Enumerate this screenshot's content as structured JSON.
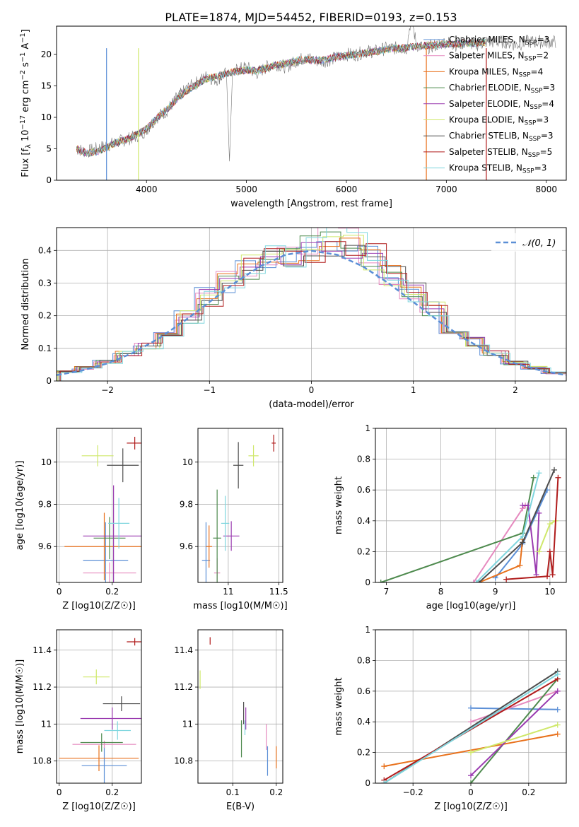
{
  "figure": {
    "title": "PLATE=1874, MJD=54452, FIBERID=0193, z=0.153"
  },
  "series_colors": {
    "Chabrier MILES": "#5b8fd6",
    "Salpeter MILES": "#e68abf",
    "Kroupa MILES": "#e8711c",
    "Chabrier ELODIE": "#4e8a4e",
    "Salpeter ELODIE": "#9a3bb0",
    "Kroupa ELODIE": "#cfe86a",
    "Chabrier STELIB": "#4d4d4d",
    "Salpeter STELIB": "#b01c1c",
    "Kroupa STELIB": "#7fd6de"
  },
  "chart_data": [
    {
      "id": "spectrum",
      "type": "line",
      "title": "PLATE=1874, MJD=54452, FIBERID=0193, z=0.153",
      "xlabel": "wavelength [Angstrom, rest frame]",
      "ylabel": "Flux [f_λ 10^-17 erg cm^-2 s^-1 A^-1]",
      "xlim": [
        3100,
        8200
      ],
      "ylim": [
        0,
        24.5
      ],
      "xticks": [
        4000,
        5000,
        6000,
        7000,
        8000
      ],
      "yticks": [
        0,
        5,
        10,
        15,
        20
      ],
      "grid": false,
      "legend_position": "top-right",
      "legend": [
        "Chabrier MILES, N_SSP=3",
        "Salpeter MILES, N_SSP=2",
        "Kroupa MILES, N_SSP=4",
        "Chabrier ELODIE, N_SSP=3",
        "Salpeter ELODIE, N_SSP=4",
        "Kroupa ELODIE, N_SSP=3",
        "Chabrier STELIB, N_SSP=3",
        "Salpeter STELIB, N_SSP=5",
        "Kroupa STELIB, N_SSP=3"
      ],
      "data_series": {
        "name": "data",
        "x": [
          3300,
          3400,
          3500,
          3600,
          3700,
          3800,
          3900,
          4000,
          4100,
          4200,
          4300,
          4400,
          4500,
          4600,
          4700,
          4800,
          4830,
          4860,
          4900,
          5000,
          5100,
          5200,
          5300,
          5400,
          5500,
          5600,
          5700,
          5800,
          5900,
          6000,
          6100,
          6200,
          6300,
          6400,
          6500,
          6600,
          6650,
          6700,
          6800,
          6900,
          7000,
          7100,
          7200,
          7300,
          7400,
          7500,
          7600,
          7700,
          7800,
          7900,
          8000,
          8100
        ],
        "y": [
          5,
          4.5,
          5,
          5.5,
          6,
          6.5,
          7,
          8,
          10,
          11,
          13,
          14.5,
          15.5,
          16.5,
          16,
          17,
          3,
          17,
          17.5,
          18,
          17,
          18,
          18.5,
          18,
          19,
          19.5,
          19,
          19,
          19.5,
          20,
          20,
          20.5,
          20.5,
          21,
          21,
          21,
          26,
          21.5,
          21,
          21.5,
          22,
          21.5,
          22,
          21.5,
          22,
          22,
          22,
          21.5,
          22,
          22,
          22,
          22
        ]
      },
      "model_series": {
        "x": [
          3300,
          3400,
          3500,
          3600,
          3700,
          3800,
          3900,
          4000,
          4100,
          4200,
          4300,
          4400,
          4500,
          4600,
          4700,
          4800,
          4900,
          5000,
          5100,
          5200,
          5300,
          5400,
          5500,
          5600,
          5700,
          5800,
          5900,
          6000,
          6100,
          6200,
          6300,
          6400,
          6500,
          6600,
          6700,
          6800,
          6900,
          7000,
          7100,
          7200,
          7300,
          7400
        ],
        "y": [
          5,
          4.3,
          4.5,
          5.2,
          6,
          6.5,
          7.2,
          8.2,
          9.8,
          11.2,
          12.8,
          14.2,
          15.2,
          16.2,
          16.5,
          17,
          17.3,
          17.5,
          17.4,
          17.8,
          18.4,
          18.5,
          19,
          19.2,
          19,
          19.2,
          19.6,
          19.8,
          20,
          20.3,
          20.5,
          20.8,
          21,
          21,
          21.3,
          21.4,
          21.5,
          21.6,
          21.7,
          21.8,
          21.8,
          21.9
        ]
      }
    },
    {
      "id": "residuals",
      "type": "step",
      "xlabel": "(data-model)/error",
      "ylabel": "Normed distribution",
      "xlim": [
        -2.5,
        2.5
      ],
      "ylim": [
        0,
        0.47
      ],
      "xticks": [
        -2,
        -1,
        0,
        1,
        2
      ],
      "yticks": [
        0.0,
        0.1,
        0.2,
        0.3,
        0.4
      ],
      "grid": true,
      "legend_position": "top-right",
      "legend": [
        "𝒩(0, 1)"
      ],
      "reference_curve": {
        "name": "𝒩(0, 1)",
        "x": [
          -2.5,
          -2.25,
          -2.0,
          -1.75,
          -1.5,
          -1.25,
          -1.0,
          -0.75,
          -0.5,
          -0.25,
          0.0,
          0.25,
          0.5,
          0.75,
          1.0,
          1.25,
          1.5,
          1.75,
          2.0,
          2.25,
          2.5
        ],
        "y": [
          0.018,
          0.032,
          0.054,
          0.086,
          0.13,
          0.183,
          0.242,
          0.301,
          0.352,
          0.387,
          0.399,
          0.387,
          0.352,
          0.301,
          0.242,
          0.183,
          0.13,
          0.086,
          0.054,
          0.032,
          0.018
        ]
      },
      "bin_edges": [
        -2.5,
        -2.3,
        -2.1,
        -1.9,
        -1.7,
        -1.5,
        -1.3,
        -1.1,
        -0.9,
        -0.7,
        -0.5,
        -0.3,
        -0.1,
        0.1,
        0.3,
        0.5,
        0.7,
        0.9,
        1.1,
        1.3,
        1.5,
        1.7,
        1.9,
        2.1,
        2.3,
        2.5
      ],
      "bin_heights": [
        0.028,
        0.04,
        0.058,
        0.085,
        0.11,
        0.15,
        0.2,
        0.26,
        0.3,
        0.35,
        0.38,
        0.39,
        0.4,
        0.43,
        0.42,
        0.38,
        0.33,
        0.27,
        0.22,
        0.16,
        0.12,
        0.085,
        0.055,
        0.04,
        0.025
      ]
    },
    {
      "id": "age-vs-Z",
      "type": "errorbar",
      "xlabel": "Z [log10(Z/Z☉)]",
      "ylabel": "age  [log10(age/yr)]",
      "xlim": [
        -0.01,
        0.31
      ],
      "ylim": [
        9.43,
        10.16
      ],
      "xticks": [
        0.0,
        0.2
      ],
      "yticks": [
        9.6,
        9.8,
        10.0
      ],
      "grid": true,
      "points": [
        {
          "series": "Chabrier MILES",
          "x": 0.175,
          "y": 9.535,
          "xerr": 0.085,
          "yerr": 0.18
        },
        {
          "series": "Salpeter MILES",
          "x": 0.19,
          "y": 9.475,
          "xerr": 0.1,
          "yerr": 0.05
        },
        {
          "series": "Kroupa MILES",
          "x": 0.17,
          "y": 9.6,
          "xerr": 0.15,
          "yerr": 0.16
        },
        {
          "series": "Chabrier ELODIE",
          "x": 0.19,
          "y": 9.64,
          "xerr": 0.06,
          "yerr": 0.1
        },
        {
          "series": "Salpeter ELODIE",
          "x": 0.205,
          "y": 9.65,
          "xerr": 0.115,
          "yerr": 0.24
        },
        {
          "series": "Kroupa ELODIE",
          "x": 0.145,
          "y": 10.03,
          "xerr": 0.06,
          "yerr": 0.05
        },
        {
          "series": "Chabrier STELIB",
          "x": 0.24,
          "y": 9.985,
          "xerr": 0.06,
          "yerr": 0.08
        },
        {
          "series": "Salpeter STELIB",
          "x": 0.285,
          "y": 10.09,
          "xerr": 0.03,
          "yerr": 0.03
        },
        {
          "series": "Kroupa STELIB",
          "x": 0.225,
          "y": 9.71,
          "xerr": 0.04,
          "yerr": 0.12
        }
      ]
    },
    {
      "id": "age-vs-mass",
      "type": "errorbar",
      "xlabel": "mass [log10(M/M☉)]",
      "ylabel": "",
      "xlim": [
        10.7,
        11.54
      ],
      "ylim": [
        9.43,
        10.16
      ],
      "xticks": [
        11.0,
        11.5
      ],
      "yticks": [
        9.6,
        9.8,
        10.0
      ],
      "grid": true,
      "points": [
        {
          "series": "Chabrier MILES",
          "x": 10.78,
          "y": 9.535,
          "xerr": 0.04,
          "yerr": 0.18
        },
        {
          "series": "Salpeter MILES",
          "x": 10.89,
          "y": 9.475,
          "xerr": 0.03,
          "yerr": 0.07
        },
        {
          "series": "Kroupa MILES",
          "x": 10.81,
          "y": 9.6,
          "xerr": 0.03,
          "yerr": 0.1
        },
        {
          "series": "Chabrier ELODIE",
          "x": 10.89,
          "y": 9.64,
          "xerr": 0.04,
          "yerr": 0.23
        },
        {
          "series": "Salpeter ELODIE",
          "x": 11.03,
          "y": 9.65,
          "xerr": 0.08,
          "yerr": 0.07
        },
        {
          "series": "Kroupa ELODIE",
          "x": 11.25,
          "y": 10.03,
          "xerr": 0.05,
          "yerr": 0.05
        },
        {
          "series": "Chabrier STELIB",
          "x": 11.1,
          "y": 9.985,
          "xerr": 0.05,
          "yerr": 0.11
        },
        {
          "series": "Salpeter STELIB",
          "x": 11.45,
          "y": 10.09,
          "xerr": 0.02,
          "yerr": 0.04
        },
        {
          "series": "Kroupa STELIB",
          "x": 10.97,
          "y": 9.71,
          "xerr": 0.04,
          "yerr": 0.13
        }
      ]
    },
    {
      "id": "weight-vs-age",
      "type": "line",
      "xlabel": "age  [log10(age/yr)]",
      "ylabel": "mass weight",
      "xlim": [
        6.8,
        10.3
      ],
      "ylim": [
        0,
        1.0
      ],
      "xticks": [
        7,
        8,
        9,
        10
      ],
      "yticks": [
        0.0,
        0.2,
        0.4,
        0.6,
        0.8,
        1.0
      ],
      "grid": true,
      "series": [
        {
          "series": "Chabrier MILES",
          "x": [
            9.0,
            9.5,
            9.95
          ],
          "y": [
            0.03,
            0.25,
            0.6
          ]
        },
        {
          "series": "Salpeter MILES",
          "x": [
            8.6,
            9.5,
            9.55
          ],
          "y": [
            0.0,
            0.48,
            0.5
          ]
        },
        {
          "series": "Kroupa MILES",
          "x": [
            8.7,
            9.45,
            9.5
          ],
          "y": [
            0.0,
            0.11,
            0.28
          ]
        },
        {
          "series": "Chabrier ELODIE",
          "x": [
            6.9,
            9.5,
            9.7
          ],
          "y": [
            0.0,
            0.32,
            0.68
          ]
        },
        {
          "series": "Salpeter ELODIE",
          "x": [
            9.5,
            9.6,
            9.75,
            9.8
          ],
          "y": [
            0.5,
            0.5,
            0.05,
            0.45
          ]
        },
        {
          "series": "Kroupa ELODIE",
          "x": [
            9.8,
            10.0,
            10.1
          ],
          "y": [
            0.2,
            0.38,
            0.4
          ]
        },
        {
          "series": "Chabrier STELIB",
          "x": [
            8.7,
            9.5,
            10.08
          ],
          "y": [
            0.0,
            0.26,
            0.73
          ]
        },
        {
          "series": "Salpeter STELIB",
          "x": [
            9.2,
            9.95,
            10.0,
            10.05,
            10.15
          ],
          "y": [
            0.02,
            0.04,
            0.2,
            0.05,
            0.68
          ]
        },
        {
          "series": "Kroupa STELIB",
          "x": [
            8.65,
            9.5,
            9.8
          ],
          "y": [
            0.0,
            0.3,
            0.71
          ]
        }
      ]
    },
    {
      "id": "mass-vs-Z",
      "type": "errorbar",
      "xlabel": "Z [log10(Z/Z☉)]",
      "ylabel": "mass [log10(M/M☉)]",
      "xlim": [
        -0.01,
        0.31
      ],
      "ylim": [
        10.68,
        11.51
      ],
      "xticks": [
        0.0,
        0.2
      ],
      "yticks": [
        10.8,
        11.0,
        11.2,
        11.4
      ],
      "grid": true,
      "points": [
        {
          "series": "Chabrier MILES",
          "x": 0.17,
          "y": 10.775,
          "xerr": 0.085,
          "yerr": 0.1
        },
        {
          "series": "Salpeter MILES",
          "x": 0.17,
          "y": 10.89,
          "xerr": 0.12,
          "yerr": 0.02
        },
        {
          "series": "Kroupa MILES",
          "x": 0.15,
          "y": 10.815,
          "xerr": 0.15,
          "yerr": 0.07
        },
        {
          "series": "Chabrier ELODIE",
          "x": 0.16,
          "y": 10.9,
          "xerr": 0.08,
          "yerr": 0.05
        },
        {
          "series": "Salpeter ELODIE",
          "x": 0.2,
          "y": 11.03,
          "xerr": 0.12,
          "yerr": 0.06
        },
        {
          "series": "Kroupa ELODIE",
          "x": 0.14,
          "y": 11.255,
          "xerr": 0.05,
          "yerr": 0.04
        },
        {
          "series": "Chabrier STELIB",
          "x": 0.235,
          "y": 11.11,
          "xerr": 0.07,
          "yerr": 0.04
        },
        {
          "series": "Salpeter STELIB",
          "x": 0.285,
          "y": 11.445,
          "xerr": 0.03,
          "yerr": 0.02
        },
        {
          "series": "Kroupa STELIB",
          "x": 0.22,
          "y": 10.965,
          "xerr": 0.05,
          "yerr": 0.05
        }
      ]
    },
    {
      "id": "mass-vs-ebv",
      "type": "errorbar",
      "xlabel": "E(B-V)",
      "ylabel": "",
      "xlim": [
        0.02,
        0.215
      ],
      "ylim": [
        10.68,
        11.51
      ],
      "xticks": [
        0.1,
        0.2
      ],
      "yticks": [
        10.8,
        11.0,
        11.2,
        11.4
      ],
      "grid": true,
      "points": [
        {
          "series": "Chabrier MILES",
          "x": 0.18,
          "y": 10.8,
          "xerr": 0,
          "yerr": 0.08
        },
        {
          "series": "Salpeter MILES",
          "x": 0.177,
          "y": 10.93,
          "xerr": 0,
          "yerr": 0.07
        },
        {
          "series": "Kroupa MILES",
          "x": 0.2,
          "y": 10.82,
          "xerr": 0,
          "yerr": 0.06
        },
        {
          "series": "Chabrier ELODIE",
          "x": 0.12,
          "y": 10.92,
          "xerr": 0,
          "yerr": 0.1
        },
        {
          "series": "Salpeter ELODIE",
          "x": 0.13,
          "y": 11.03,
          "xerr": 0,
          "yerr": 0.06
        },
        {
          "series": "Kroupa ELODIE",
          "x": 0.025,
          "y": 11.24,
          "xerr": 0,
          "yerr": 0.05
        },
        {
          "series": "Chabrier STELIB",
          "x": 0.125,
          "y": 11.06,
          "xerr": 0,
          "yerr": 0.06
        },
        {
          "series": "Salpeter STELIB",
          "x": 0.048,
          "y": 11.45,
          "xerr": 0,
          "yerr": 0.02
        },
        {
          "series": "Kroupa STELIB",
          "x": 0.128,
          "y": 10.98,
          "xerr": 0,
          "yerr": 0.04
        }
      ]
    },
    {
      "id": "weight-vs-Z",
      "type": "line",
      "xlabel": "Z [log10(Z/Z☉)]",
      "ylabel": "mass weight",
      "xlim": [
        -0.33,
        0.33
      ],
      "ylim": [
        0,
        1.0
      ],
      "xticks": [
        -0.2,
        0.0,
        0.2
      ],
      "yticks": [
        0.0,
        0.2,
        0.4,
        0.6,
        0.8,
        1.0
      ],
      "grid": true,
      "series": [
        {
          "series": "Chabrier MILES",
          "x": [
            0.0,
            0.3
          ],
          "y": [
            0.49,
            0.48
          ]
        },
        {
          "series": "Salpeter MILES",
          "x": [
            0.0,
            0.3
          ],
          "y": [
            0.4,
            0.6
          ]
        },
        {
          "series": "Kroupa MILES",
          "x": [
            -0.3,
            0.3
          ],
          "y": [
            0.11,
            0.32
          ]
        },
        {
          "series": "Chabrier ELODIE",
          "x": [
            0.0,
            0.3
          ],
          "y": [
            0.0,
            0.68
          ]
        },
        {
          "series": "Salpeter ELODIE",
          "x": [
            0.0,
            0.3
          ],
          "y": [
            0.05,
            0.6
          ]
        },
        {
          "series": "Kroupa ELODIE",
          "x": [
            0.0,
            0.3
          ],
          "y": [
            0.2,
            0.38
          ]
        },
        {
          "series": "Chabrier STELIB",
          "x": [
            -0.3,
            0.3
          ],
          "y": [
            0.0,
            0.73
          ]
        },
        {
          "series": "Salpeter STELIB",
          "x": [
            -0.3,
            0.3
          ],
          "y": [
            0.02,
            0.68
          ]
        },
        {
          "series": "Kroupa STELIB",
          "x": [
            -0.3,
            0.3
          ],
          "y": [
            0.0,
            0.71
          ]
        }
      ]
    }
  ]
}
